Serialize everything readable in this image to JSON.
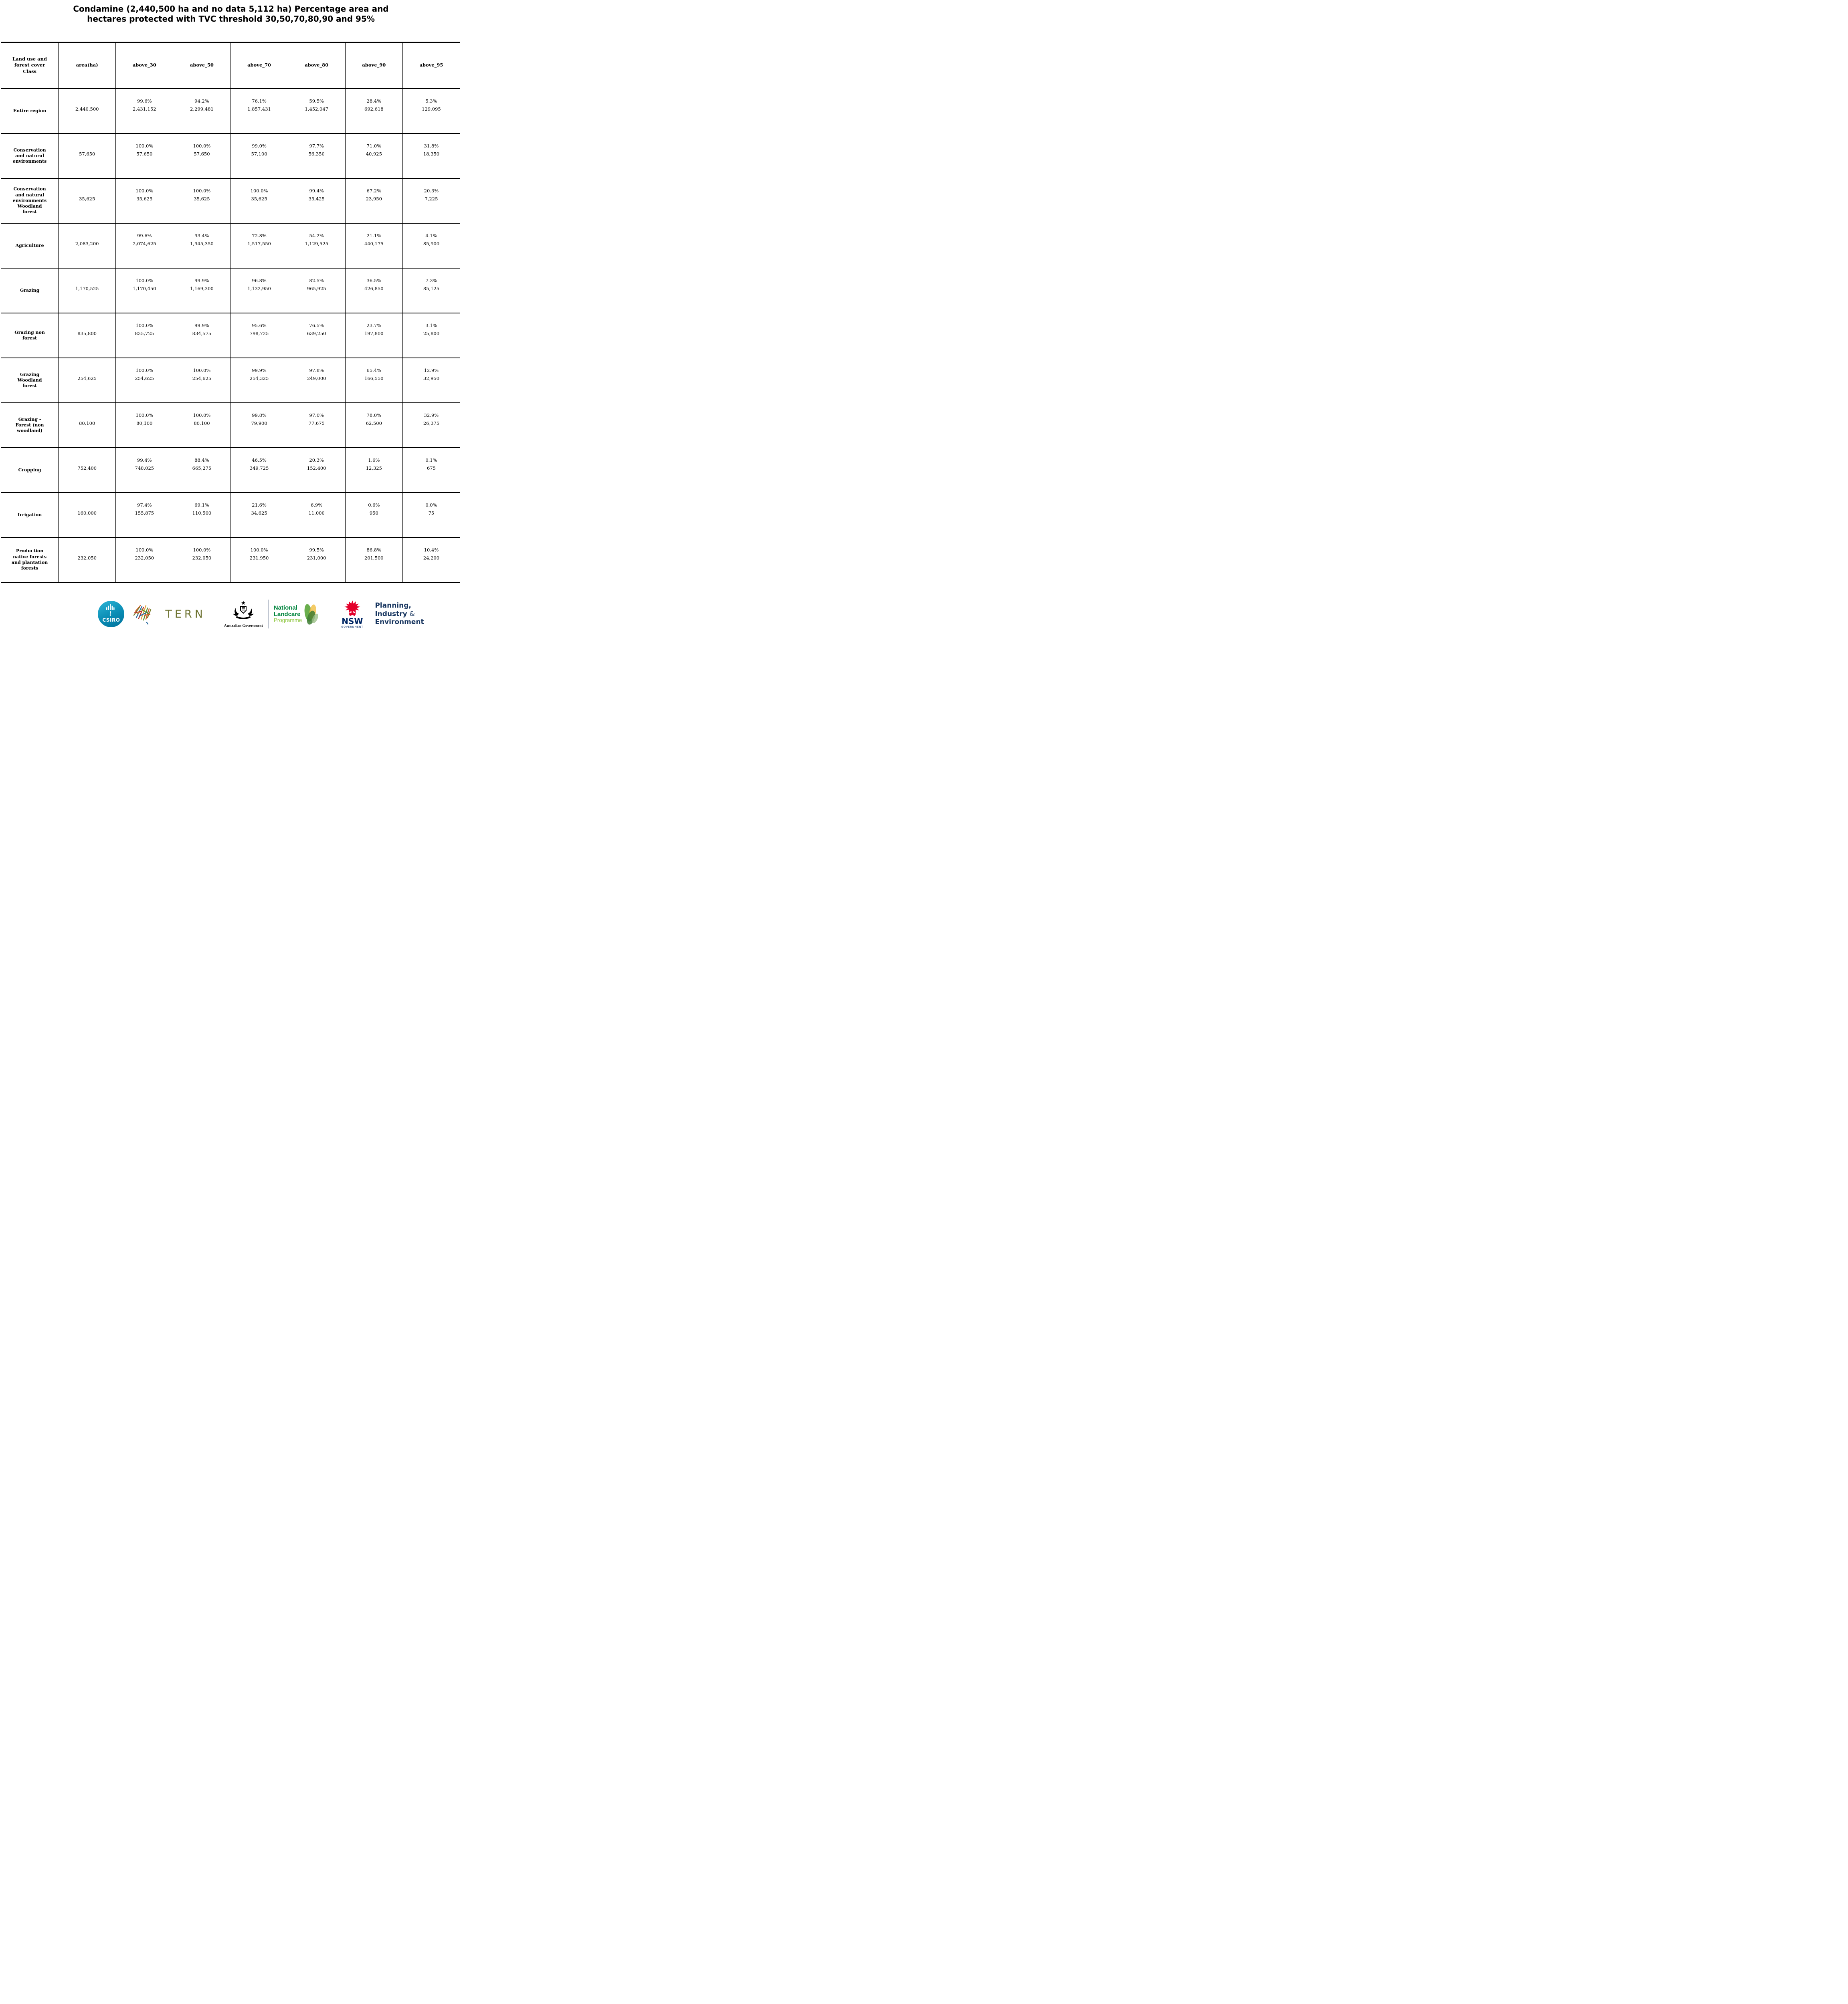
{
  "title": {
    "line1": "Condamine (2,440,500 ha and no data 5,112 ha) Percentage area and",
    "line2": "hectares protected with TVC threshold 30,50,70,80,90 and 95%"
  },
  "chart_data": {
    "type": "table",
    "title": "Condamine (2,440,500 ha and no data 5,112 ha) Percentage area and hectares protected with TVC threshold 30,50,70,80,90 and 95%",
    "columns": [
      "Land use and forest cover Class",
      "area(ha)",
      "above_30",
      "above_50",
      "above_70",
      "above_80",
      "above_90",
      "above_95"
    ],
    "rows": [
      {
        "label": "Entire region",
        "area": "2,440,500",
        "cells": [
          {
            "pct": "99.6%",
            "ha": "2,431,152"
          },
          {
            "pct": "94.2%",
            "ha": "2,299,481"
          },
          {
            "pct": "76.1%",
            "ha": "1,857,431"
          },
          {
            "pct": "59.5%",
            "ha": "1,452,047"
          },
          {
            "pct": "28.4%",
            "ha": "692,618"
          },
          {
            "pct": "5.3%",
            "ha": "129,095"
          }
        ]
      },
      {
        "label": "Conservation and natural environments",
        "area": "57,650",
        "cells": [
          {
            "pct": "100.0%",
            "ha": "57,650"
          },
          {
            "pct": "100.0%",
            "ha": "57,650"
          },
          {
            "pct": "99.0%",
            "ha": "57,100"
          },
          {
            "pct": "97.7%",
            "ha": "56,350"
          },
          {
            "pct": "71.0%",
            "ha": "40,925"
          },
          {
            "pct": "31.8%",
            "ha": "18,350"
          }
        ]
      },
      {
        "label": "Conservation and natural environments Woodland forest",
        "area": "35,625",
        "cells": [
          {
            "pct": "100.0%",
            "ha": "35,625"
          },
          {
            "pct": "100.0%",
            "ha": "35,625"
          },
          {
            "pct": "100.0%",
            "ha": "35,625"
          },
          {
            "pct": "99.4%",
            "ha": "35,425"
          },
          {
            "pct": "67.2%",
            "ha": "23,950"
          },
          {
            "pct": "20.3%",
            "ha": "7,225"
          }
        ]
      },
      {
        "label": "Agriculture",
        "area": "2,083,200",
        "cells": [
          {
            "pct": "99.6%",
            "ha": "2,074,625"
          },
          {
            "pct": "93.4%",
            "ha": "1,945,350"
          },
          {
            "pct": "72.8%",
            "ha": "1,517,550"
          },
          {
            "pct": "54.2%",
            "ha": "1,129,525"
          },
          {
            "pct": "21.1%",
            "ha": "440,175"
          },
          {
            "pct": "4.1%",
            "ha": "85,900"
          }
        ]
      },
      {
        "label": "Grazing",
        "area": "1,170,525",
        "cells": [
          {
            "pct": "100.0%",
            "ha": "1,170,450"
          },
          {
            "pct": "99.9%",
            "ha": "1,169,300"
          },
          {
            "pct": "96.8%",
            "ha": "1,132,950"
          },
          {
            "pct": "82.5%",
            "ha": "965,925"
          },
          {
            "pct": "36.5%",
            "ha": "426,850"
          },
          {
            "pct": "7.3%",
            "ha": "85,125"
          }
        ]
      },
      {
        "label": "Grazing non forest",
        "area": "835,800",
        "cells": [
          {
            "pct": "100.0%",
            "ha": "835,725"
          },
          {
            "pct": "99.9%",
            "ha": "834,575"
          },
          {
            "pct": "95.6%",
            "ha": "798,725"
          },
          {
            "pct": "76.5%",
            "ha": "639,250"
          },
          {
            "pct": "23.7%",
            "ha": "197,800"
          },
          {
            "pct": "3.1%",
            "ha": "25,800"
          }
        ]
      },
      {
        "label": "Grazing Woodland forest",
        "area": "254,625",
        "cells": [
          {
            "pct": "100.0%",
            "ha": "254,625"
          },
          {
            "pct": "100.0%",
            "ha": "254,625"
          },
          {
            "pct": "99.9%",
            "ha": "254,325"
          },
          {
            "pct": "97.8%",
            "ha": "249,000"
          },
          {
            "pct": "65.4%",
            "ha": "166,550"
          },
          {
            "pct": "12.9%",
            "ha": "32,950"
          }
        ]
      },
      {
        "label": "Grazing - Forest (non woodland)",
        "area": "80,100",
        "cells": [
          {
            "pct": "100.0%",
            "ha": "80,100"
          },
          {
            "pct": "100.0%",
            "ha": "80,100"
          },
          {
            "pct": "99.8%",
            "ha": "79,900"
          },
          {
            "pct": "97.0%",
            "ha": "77,675"
          },
          {
            "pct": "78.0%",
            "ha": "62,500"
          },
          {
            "pct": "32.9%",
            "ha": "26,375"
          }
        ]
      },
      {
        "label": "Cropping",
        "area": "752,400",
        "cells": [
          {
            "pct": "99.4%",
            "ha": "748,025"
          },
          {
            "pct": "88.4%",
            "ha": "665,275"
          },
          {
            "pct": "46.5%",
            "ha": "349,725"
          },
          {
            "pct": "20.3%",
            "ha": "152,400"
          },
          {
            "pct": "1.6%",
            "ha": "12,325"
          },
          {
            "pct": "0.1%",
            "ha": "675"
          }
        ]
      },
      {
        "label": "Irrigation",
        "area": "160,000",
        "cells": [
          {
            "pct": "97.4%",
            "ha": "155,875"
          },
          {
            "pct": "69.1%",
            "ha": "110,500"
          },
          {
            "pct": "21.6%",
            "ha": "34,625"
          },
          {
            "pct": "6.9%",
            "ha": "11,000"
          },
          {
            "pct": "0.6%",
            "ha": "950"
          },
          {
            "pct": "0.0%",
            "ha": "75"
          }
        ]
      },
      {
        "label": "Production native forests and plantation forests",
        "area": "232,050",
        "cells": [
          {
            "pct": "100.0%",
            "ha": "232,050"
          },
          {
            "pct": "100.0%",
            "ha": "232,050"
          },
          {
            "pct": "100.0%",
            "ha": "231,950"
          },
          {
            "pct": "99.5%",
            "ha": "231,000"
          },
          {
            "pct": "86.8%",
            "ha": "201,500"
          },
          {
            "pct": "10.4%",
            "ha": "24,200"
          }
        ]
      }
    ]
  },
  "footer": {
    "csiro": {
      "label": "CSIRO"
    },
    "tern": {
      "label": "TERN"
    },
    "ausgov": {
      "label": "Australian Government"
    },
    "landcare": {
      "line1": "National",
      "line2": "Landcare",
      "line3": "Programme"
    },
    "nsw": {
      "label": "NSW",
      "sub": "GOVERNMENT"
    },
    "pie": {
      "line1": "Planning,",
      "line2_main": "Industry",
      "line2_amp": "&",
      "line3": "Environment"
    }
  },
  "colors": {
    "csiro_teal": "#0a8cb4",
    "tern_olive": "#6f7433",
    "landcare_green": "#00843d",
    "landcare_light_green": "#8dc63f",
    "nsw_red": "#e4002b",
    "nsw_navy": "#002664",
    "pie_navy": "#17355f"
  }
}
